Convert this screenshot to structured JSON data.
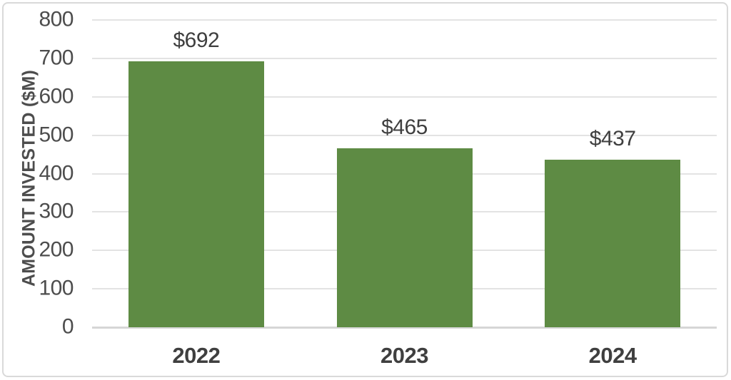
{
  "chart_data": {
    "type": "bar",
    "title": "",
    "categories": [
      "2022",
      "2023",
      "2024"
    ],
    "values": [
      692,
      465,
      437
    ],
    "value_labels": [
      "$692",
      "$465",
      "$437"
    ],
    "xlabel": "",
    "ylabel": "AMOUNT INVESTED ($M)",
    "ylim": [
      0,
      800
    ],
    "yticks": [
      0,
      100,
      200,
      300,
      400,
      500,
      600,
      700,
      800
    ],
    "grid": "horizontal",
    "legend": "none",
    "colors": {
      "bar": "#5e8b44",
      "value_label_text": "#3f3f3f",
      "xtick_text": "#3f3f3f",
      "ytick_text": "#4d4d4d",
      "ytitle_text": "#4d4d4d",
      "gridline": "#e3e3e3",
      "axis_line": "#d6d6d6",
      "frame_border": "#d9d9d9",
      "background": "#ffffff"
    }
  }
}
